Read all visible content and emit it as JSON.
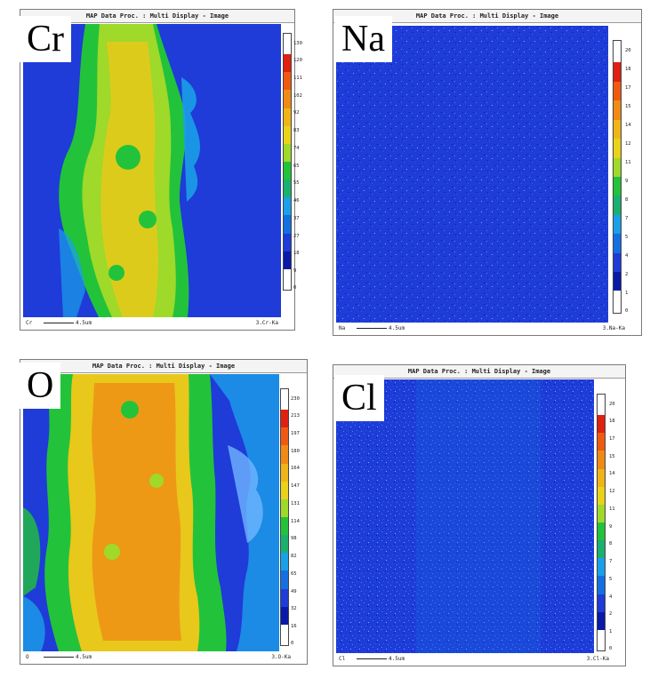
{
  "window_title": "MAP Data Proc. : Multi Display - Image",
  "scale_text": "4.5um",
  "panels": [
    {
      "element": "Cr",
      "footer_left": "Cr",
      "footer_right": "3.Cr-Ka",
      "colorbar_ticks": [
        "130",
        "120",
        "111",
        "102",
        "92",
        "83",
        "74",
        "65",
        "55",
        "46",
        "37",
        "27",
        "18",
        "9",
        "0"
      ]
    },
    {
      "element": "Na",
      "footer_left": "Na",
      "footer_right": "3.Na-Ka",
      "colorbar_ticks": [
        "20",
        "18",
        "17",
        "15",
        "14",
        "12",
        "11",
        "9",
        "8",
        "7",
        "5",
        "4",
        "2",
        "1",
        "0"
      ]
    },
    {
      "element": "O",
      "footer_left": "O",
      "footer_right": "3.O-Ka",
      "colorbar_ticks": [
        "230",
        "213",
        "197",
        "180",
        "164",
        "147",
        "131",
        "114",
        "98",
        "82",
        "65",
        "49",
        "32",
        "16",
        "0"
      ]
    },
    {
      "element": "Cl",
      "footer_left": "Cl",
      "footer_right": "3.Cl-Ka",
      "colorbar_ticks": [
        "20",
        "18",
        "17",
        "15",
        "14",
        "12",
        "11",
        "9",
        "8",
        "7",
        "5",
        "4",
        "2",
        "1",
        "0"
      ]
    }
  ],
  "colors": {
    "background_blue": "#1f3bd8",
    "dark_blue": "#0a1aa8",
    "cyan": "#1aa0e8",
    "green": "#22c33a",
    "yellow": "#e8d21a",
    "orange": "#f08a14",
    "red": "#e02010"
  }
}
